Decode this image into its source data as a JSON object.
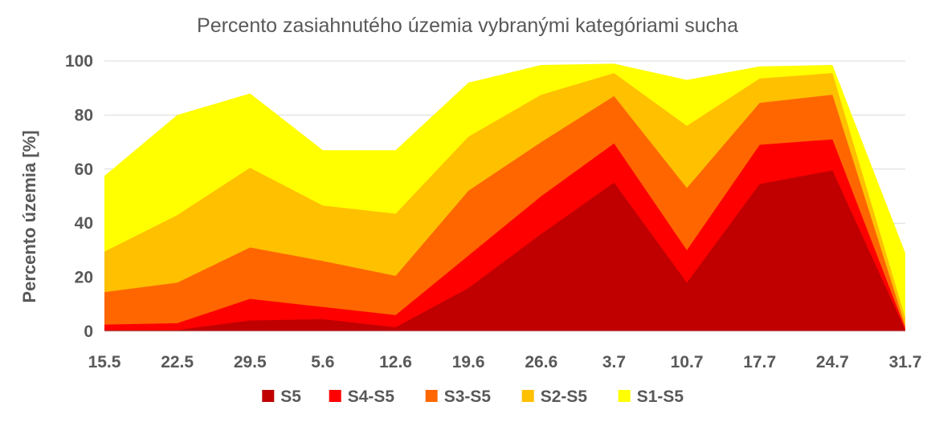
{
  "chart_data": {
    "type": "area",
    "title": "Percento zasiahnutého územia vybranými kategóriami sucha",
    "xlabel": "",
    "ylabel": "Percento územia  [%]",
    "ylim": [
      0,
      100
    ],
    "yticks": [
      0,
      20,
      40,
      60,
      80,
      100
    ],
    "grid": true,
    "legend_position": "bottom",
    "categories": [
      "15.5",
      "22.5",
      "29.5",
      "5.6",
      "12.6",
      "19.6",
      "26.6",
      "3.7",
      "10.7",
      "17.7",
      "24.7",
      "31.7"
    ],
    "series": [
      {
        "name": "S5",
        "color": "#c00000",
        "values": [
          0.5,
          0.5,
          4,
          4.5,
          1.5,
          16,
          36,
          55,
          18,
          54.5,
          59.5,
          0.5
        ]
      },
      {
        "name": "S4-S5",
        "color": "#ff0000",
        "values": [
          2.5,
          3,
          12,
          9,
          6,
          28,
          50,
          69.5,
          30,
          69,
          71,
          1
        ]
      },
      {
        "name": "S3-S5",
        "color": "#ff6600",
        "values": [
          14.5,
          18,
          31,
          26,
          20.5,
          52,
          70,
          87,
          53,
          84.5,
          87.5,
          2
        ]
      },
      {
        "name": "S2-S5",
        "color": "#ffc000",
        "values": [
          29.5,
          43,
          60.5,
          46.5,
          43.5,
          72,
          87.5,
          95.5,
          76,
          93.5,
          95.5,
          5
        ]
      },
      {
        "name": "S1-S5",
        "color": "#ffff00",
        "values": [
          57.5,
          80,
          88,
          67,
          67,
          92,
          98.5,
          99,
          93,
          98,
          98.5,
          29
        ]
      }
    ]
  }
}
